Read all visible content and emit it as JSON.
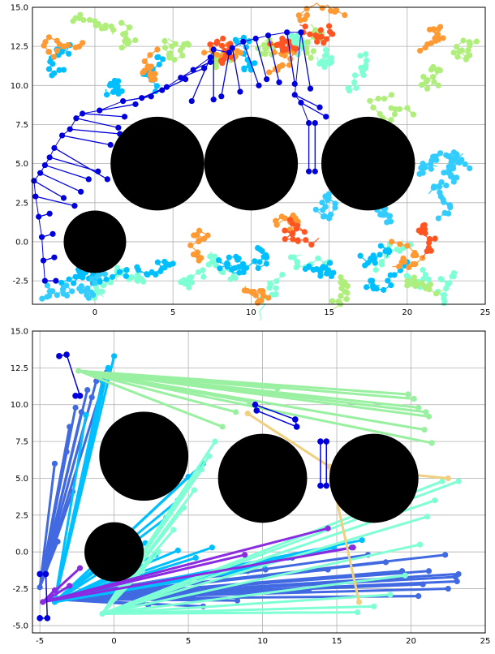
{
  "chart_data": [
    {
      "type": "scatter",
      "title": "",
      "xlabel": "",
      "ylabel": "",
      "xlim": [
        -4,
        25
      ],
      "ylim": [
        -4,
        15
      ],
      "grid": true,
      "xticks": [
        "0",
        "5",
        "10",
        "15",
        "20",
        "25"
      ],
      "yticks": [
        "15.0",
        "12.5",
        "10.0",
        "7.5",
        "5.0",
        "2.5",
        "0.0",
        "-2.5"
      ],
      "xtick_values": [
        0,
        5,
        10,
        15,
        20,
        25
      ],
      "ytick_values": [
        15,
        12.5,
        10,
        7.5,
        5,
        2.5,
        0,
        -2.5
      ],
      "obstacles": [
        {
          "cx": 4,
          "cy": 5,
          "r": 3
        },
        {
          "cx": 10,
          "cy": 5,
          "r": 3
        },
        {
          "cx": 17.5,
          "cy": 5,
          "r": 3
        },
        {
          "cx": 0,
          "cy": 0,
          "r": 2
        }
      ],
      "colors": {
        "obstacle": "#000000",
        "path": "#0000dd"
      },
      "path_segments": [
        [
          [
            -3.2,
            -2.5
          ],
          [
            -2.5,
            -2.5
          ]
        ],
        [
          [
            -3.3,
            -1.2
          ],
          [
            -2.6,
            -1.0
          ]
        ],
        [
          [
            -3.4,
            0.3
          ],
          [
            -2.7,
            0.5
          ]
        ],
        [
          [
            -3.6,
            1.6
          ],
          [
            -2.9,
            1.8
          ]
        ],
        [
          [
            -3.8,
            2.9
          ],
          [
            -1.3,
            2.3
          ]
        ],
        [
          [
            -3.9,
            3.9
          ],
          [
            -2.0,
            2.8
          ]
        ],
        [
          [
            -3.5,
            4.4
          ],
          [
            -0.9,
            3.2
          ]
        ],
        [
          [
            -3.2,
            4.9
          ],
          [
            -0.4,
            4.0
          ]
        ],
        [
          [
            -2.9,
            5.4
          ],
          [
            0.2,
            4.5
          ]
        ],
        [
          [
            -2.6,
            6.0
          ],
          [
            0.8,
            4.0
          ]
        ],
        [
          [
            -2.1,
            6.8
          ],
          [
            1.0,
            6.2
          ]
        ],
        [
          [
            -1.6,
            7.2
          ],
          [
            1.6,
            6.9
          ]
        ],
        [
          [
            -1.2,
            7.9
          ],
          [
            1.5,
            7.3
          ]
        ],
        [
          [
            -0.8,
            8.2
          ],
          [
            1.9,
            8.0
          ]
        ],
        [
          [
            0.3,
            8.4
          ],
          [
            2.6,
            8.8
          ]
        ],
        [
          [
            1.8,
            9.0
          ],
          [
            3.6,
            9.3
          ]
        ],
        [
          [
            3.0,
            9.2
          ],
          [
            4.6,
            9.9
          ]
        ],
        [
          [
            4.3,
            9.7
          ],
          [
            5.8,
            10.4
          ]
        ],
        [
          [
            5.5,
            10.5
          ],
          [
            7.0,
            11.1
          ]
        ],
        [
          [
            6.3,
            11.0
          ],
          [
            7.4,
            11.5
          ]
        ],
        [
          [
            7.4,
            11.8
          ],
          [
            6.2,
            9.0
          ]
        ],
        [
          [
            7.6,
            12.3
          ],
          [
            7.6,
            9.1
          ]
        ],
        [
          [
            8.6,
            12.1
          ],
          [
            8.1,
            9.3
          ]
        ],
        [
          [
            8.8,
            12.4
          ],
          [
            9.3,
            9.6
          ]
        ],
        [
          [
            9.5,
            12.8
          ],
          [
            10.5,
            10.0
          ]
        ],
        [
          [
            10.3,
            13.0
          ],
          [
            11.0,
            10.4
          ]
        ],
        [
          [
            11.1,
            13.2
          ],
          [
            11.8,
            10.2
          ]
        ],
        [
          [
            12.3,
            13.4
          ],
          [
            12.8,
            10.1
          ]
        ],
        [
          [
            13.2,
            13.4
          ],
          [
            13.8,
            9.8
          ]
        ],
        [
          [
            12.8,
            9.4
          ],
          [
            14.4,
            8.6
          ]
        ],
        [
          [
            13.2,
            8.9
          ],
          [
            14.8,
            8.0
          ]
        ],
        [
          [
            13.7,
            7.6
          ],
          [
            13.7,
            4.5
          ]
        ],
        [
          [
            14.1,
            7.6
          ],
          [
            14.1,
            4.5
          ]
        ]
      ],
      "point_clusters": [
        {
          "color": "#7fffd4",
          "points": [
            [
              1,
              -2.6
            ],
            [
              3,
              -2.4
            ],
            [
              6,
              -2.5
            ],
            [
              9,
              -2.3
            ],
            [
              12,
              -2.1
            ],
            [
              15,
              -2.0
            ],
            [
              18,
              -1.8
            ],
            [
              21,
              -1.8
            ],
            [
              23,
              -2.0
            ],
            [
              13,
              12
            ],
            [
              15,
              11.4
            ],
            [
              17,
              11.9
            ]
          ]
        },
        {
          "color": "#00bfff",
          "points": [
            [
              -1,
              -2.2
            ],
            [
              2,
              -2.2
            ],
            [
              5,
              -1.4
            ],
            [
              8,
              -1.7
            ],
            [
              11,
              -1.0
            ],
            [
              14,
              -1.8
            ],
            [
              17,
              -0.9
            ],
            [
              20,
              -1.3
            ],
            [
              -2,
              11
            ],
            [
              1,
              10.1
            ],
            [
              4,
              11.8
            ],
            [
              10,
              11
            ]
          ]
        },
        {
          "color": "#b0ee7c",
          "points": [
            [
              -1,
              14.3
            ],
            [
              2,
              13
            ],
            [
              6,
              12.6
            ],
            [
              8,
              11.8
            ],
            [
              11,
              12.4
            ],
            [
              14,
              12.2
            ],
            [
              19,
              9.4
            ],
            [
              22,
              10
            ],
            [
              24,
              12.7
            ],
            [
              20,
              -2.8
            ],
            [
              16,
              -2.6
            ]
          ]
        },
        {
          "color": "#ff9933",
          "points": [
            [
              -2,
              12.5
            ],
            [
              4,
              12.3
            ],
            [
              7,
              12.1
            ],
            [
              12,
              11.3
            ],
            [
              16,
              14.5
            ],
            [
              22,
              13.6
            ],
            [
              7,
              0.2
            ],
            [
              13,
              1.3
            ],
            [
              19,
              0
            ],
            [
              10,
              -3.2
            ]
          ]
        },
        {
          "color": "#ff5522",
          "points": [
            [
              8.2,
              13
            ],
            [
              12,
              13
            ],
            [
              15,
              13.8
            ],
            [
              21,
              0.9
            ],
            [
              12.5,
              1.4
            ]
          ]
        },
        {
          "color": "#33ccff",
          "points": [
            [
              21,
              5
            ],
            [
              23,
              5.3
            ],
            [
              24,
              4.7
            ],
            [
              18,
              2.9
            ],
            [
              22,
              1.5
            ],
            [
              15,
              1.5
            ],
            [
              -2,
              -2.9
            ],
            [
              -1,
              -3
            ]
          ]
        }
      ]
    },
    {
      "type": "line",
      "title": "",
      "xlabel": "",
      "ylabel": "",
      "xlim": [
        -5.5,
        25
      ],
      "ylim": [
        -5.5,
        15
      ],
      "grid": true,
      "xticks": [
        "-5",
        "0",
        "5",
        "10",
        "15",
        "20",
        "25"
      ],
      "yticks": [
        "15.0",
        "12.5",
        "10.0",
        "7.5",
        "5.0",
        "2.5",
        "0.0",
        "-2.5",
        "-5.0"
      ],
      "xtick_values": [
        -5,
        0,
        5,
        10,
        15,
        20,
        25
      ],
      "ytick_values": [
        15,
        12.5,
        10,
        7.5,
        5,
        2.5,
        0,
        -2.5,
        -5
      ],
      "obstacles": [
        {
          "cx": 2,
          "cy": 6.5,
          "r": 3
        },
        {
          "cx": 10,
          "cy": 5,
          "r": 3
        },
        {
          "cx": 17.5,
          "cy": 5,
          "r": 3
        },
        {
          "cx": 0,
          "cy": 0,
          "r": 2
        }
      ],
      "hub_point": [
        -5,
        -3
      ],
      "series": [
        {
          "color": "#4169e1",
          "endpoints": [
            [
              -3.2,
              6.8
            ],
            [
              -3.0,
              8.5
            ],
            [
              -2.2,
              9.5
            ],
            [
              -1.8,
              11
            ],
            [
              -1.2,
              11.6
            ],
            [
              -0.5,
              12.2
            ],
            [
              -2.8,
              4.1
            ],
            [
              -4.0,
              6.0
            ],
            [
              -3.8,
              0.7
            ],
            [
              -2.6,
              9.8
            ],
            [
              -1.5,
              10.5
            ]
          ],
          "origin": [
            -5,
            -2.4
          ]
        },
        {
          "color": "#4169e1",
          "endpoints": [
            [
              23.2,
              -1.5
            ],
            [
              23.1,
              -2.0
            ],
            [
              23.0,
              -1.7
            ],
            [
              22.5,
              -2.5
            ],
            [
              22.3,
              -0.2
            ],
            [
              21.2,
              -1.3
            ],
            [
              20.8,
              -2.2
            ],
            [
              20.5,
              -3.0
            ],
            [
              19.4,
              -1.3
            ],
            [
              18.3,
              -0.7
            ],
            [
              17.1,
              -0.2
            ],
            [
              16.0,
              0.3
            ],
            [
              14.4,
              -1.2
            ],
            [
              13.1,
              -2.6
            ],
            [
              12.0,
              -0.4
            ],
            [
              10.2,
              -1.2
            ],
            [
              9.0,
              -1.3
            ],
            [
              8.3,
              -3.3
            ],
            [
              7.1,
              -2.7
            ],
            [
              6.0,
              -3.7
            ],
            [
              5.3,
              -3.0
            ],
            [
              4.3,
              -2.8
            ],
            [
              3.8,
              -2.5
            ],
            [
              2.3,
              -3.6
            ]
          ],
          "origin": [
            -4.3,
            -3.2
          ]
        },
        {
          "color": "#00bfff",
          "endpoints": [
            [
              0.0,
              13.3
            ],
            [
              -0.4,
              12.5
            ],
            [
              -0.8,
              11.6
            ],
            [
              -0.9,
              10.5
            ],
            [
              -1.9,
              9.3
            ],
            [
              1.4,
              -1.2
            ],
            [
              2.8,
              -0.2
            ],
            [
              4.3,
              0.1
            ],
            [
              5.5,
              -0.4
            ],
            [
              6.6,
              0.3
            ],
            [
              8.6,
              -1.3
            ],
            [
              10.1,
              -0.9
            ],
            [
              11.7,
              -0.4
            ],
            [
              13.2,
              -0.1
            ],
            [
              14.8,
              0.3
            ],
            [
              16.7,
              0.8
            ],
            [
              2.1,
              0.6
            ],
            [
              3.5,
              2.3
            ],
            [
              4.3,
              3.5
            ],
            [
              5.0,
              5.1
            ],
            [
              6.0,
              6.0
            ]
          ],
          "origin": [
            -4.0,
            -3.4
          ]
        },
        {
          "color": "#7fffd4",
          "endpoints": [
            [
              6.8,
              7.5
            ],
            [
              6.4,
              6.5
            ],
            [
              5.9,
              5.6
            ],
            [
              5.4,
              4.2
            ],
            [
              4.7,
              3.0
            ],
            [
              4.0,
              1.5
            ],
            [
              3.0,
              0.0
            ],
            [
              1.9,
              -1.3
            ],
            [
              0.6,
              -2.0
            ],
            [
              16.4,
              -4.1
            ],
            [
              17.5,
              -3.7
            ],
            [
              18.6,
              -2.9
            ],
            [
              19.6,
              -1.6
            ],
            [
              20.6,
              0.5
            ],
            [
              21.1,
              2.4
            ],
            [
              21.6,
              3.5
            ],
            [
              22.1,
              4.8
            ],
            [
              23.2,
              4.8
            ]
          ],
          "origin": [
            -0.8,
            -4.2
          ]
        },
        {
          "color": "#98f0a0",
          "endpoints": [
            [
              19.8,
              10.7
            ],
            [
              20.2,
              10.4
            ],
            [
              20.5,
              9.8
            ],
            [
              21.0,
              9.5
            ],
            [
              21.2,
              9.2
            ],
            [
              7.3,
              8.5
            ],
            [
              8.2,
              9.5
            ],
            [
              9.1,
              10.2
            ],
            [
              11.0,
              11.1
            ],
            [
              20.9,
              8.3
            ],
            [
              21.4,
              7.4
            ]
          ],
          "origin": [
            -2.4,
            12.3
          ]
        },
        {
          "color": "#8a2be2",
          "endpoints": [
            [
              -2.3,
              -1.1
            ],
            [
              -3.0,
              -2.3
            ],
            [
              -4.0,
              -2.6
            ],
            [
              14.4,
              1.6
            ],
            [
              8.8,
              -0.2
            ],
            [
              16.1,
              0.3
            ]
          ],
          "origin": [
            -4.8,
            -3.4
          ]
        },
        {
          "color": "#f0d080",
          "endpoints": [
            [
              16.5,
              -3.4
            ],
            [
              22.5,
              5.0
            ],
            [
              9.0,
              9.4
            ]
          ],
          "origin": [
            14.5,
            5.8
          ]
        }
      ],
      "blue_paths": [
        [
          [
            -3.7,
            13.3
          ],
          [
            -3.2,
            13.4
          ],
          [
            -2.3,
            10.6
          ],
          [
            -2.6,
            10.6
          ]
        ],
        [
          [
            -5.0,
            -1.5
          ],
          [
            -4.6,
            -1.5
          ],
          [
            -4.5,
            -4.5
          ],
          [
            -5.0,
            -4.5
          ]
        ],
        [
          [
            9.5,
            10.0
          ],
          [
            12.2,
            9.0
          ],
          [
            12.3,
            8.5
          ],
          [
            9.6,
            9.6
          ]
        ],
        [
          [
            13.9,
            7.5
          ],
          [
            13.9,
            4.5
          ],
          [
            14.3,
            4.5
          ],
          [
            14.3,
            7.5
          ]
        ]
      ]
    }
  ]
}
